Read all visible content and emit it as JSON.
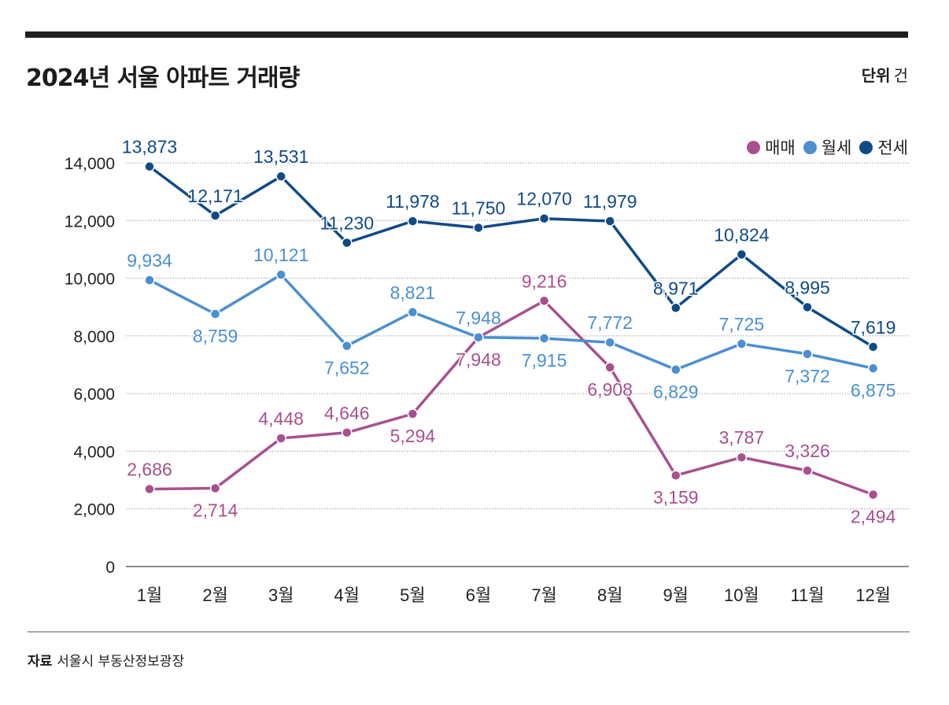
{
  "header": {
    "title": "2024년 서울 아파트 거래량",
    "unit_label": "단위",
    "unit_value": "건"
  },
  "footer": {
    "source_label": "자료",
    "source_value": "서울시 부동산정보광장"
  },
  "chart_data": {
    "type": "line",
    "categories": [
      "1월",
      "2월",
      "3월",
      "4월",
      "5월",
      "6월",
      "7월",
      "8월",
      "9월",
      "10월",
      "11월",
      "12월"
    ],
    "ylim": [
      0,
      14000
    ],
    "yticks": [
      0,
      2000,
      4000,
      6000,
      8000,
      10000,
      12000,
      14000
    ],
    "ytick_labels": [
      "0",
      "2,000",
      "4,000",
      "6,000",
      "8,000",
      "10,000",
      "12,000",
      "14,000"
    ],
    "grid": true,
    "legend_position": "top-right",
    "series": [
      {
        "name": "매매",
        "color": "#a8508f",
        "values": [
          2686,
          2714,
          4448,
          4646,
          5294,
          7948,
          9216,
          6908,
          3159,
          3787,
          3326,
          2494
        ],
        "labels": [
          "2,686",
          "2,714",
          "4,448",
          "4,646",
          "5,294",
          "7,948",
          "9,216",
          "6,908",
          "3,159",
          "3,787",
          "3,326",
          "2,494"
        ]
      },
      {
        "name": "월세",
        "color": "#4a8fd1",
        "values": [
          9934,
          8759,
          10121,
          7652,
          8821,
          7948,
          7915,
          7772,
          6829,
          7725,
          7372,
          6875
        ],
        "labels": [
          "9,934",
          "8,759",
          "10,121",
          "7,652",
          "8,821",
          "7,948",
          "7,915",
          "7,772",
          "6,829",
          "7,725",
          "7,372",
          "6,875"
        ]
      },
      {
        "name": "전세",
        "color": "#104a86",
        "values": [
          13873,
          12171,
          13531,
          11230,
          11978,
          11750,
          12070,
          11979,
          8971,
          10824,
          8995,
          7619
        ],
        "labels": [
          "13,873",
          "12,171",
          "13,531",
          "11,230",
          "11,978",
          "11,750",
          "12,070",
          "11,979",
          "8,971",
          "10,824",
          "8,995",
          "7,619"
        ]
      }
    ]
  }
}
